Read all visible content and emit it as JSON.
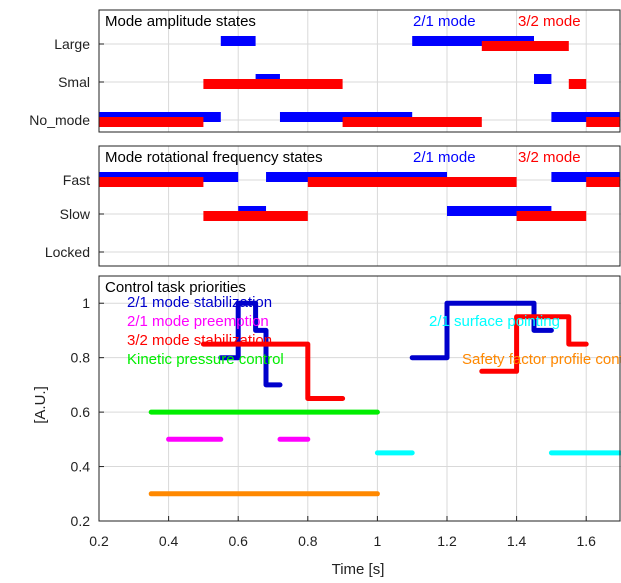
{
  "chart_data": [
    {
      "type": "bar",
      "title": "Mode amplitude states",
      "x_range": [
        0.2,
        1.7
      ],
      "x_grid": [
        0.2,
        0.4,
        0.6,
        0.8,
        1.0,
        1.2,
        1.4,
        1.6
      ],
      "categories": [
        "Large",
        "Smal",
        "No_mode"
      ],
      "grid": true,
      "series": [
        {
          "name": "2/1 mode",
          "color": "#0000ff",
          "segments": [
            {
              "state": "No_mode",
              "x": [
                0.2,
                0.55
              ]
            },
            {
              "state": "Large",
              "x": [
                0.55,
                0.65
              ]
            },
            {
              "state": "Smal",
              "x": [
                0.65,
                0.72
              ]
            },
            {
              "state": "No_mode",
              "x": [
                0.72,
                1.1
              ]
            },
            {
              "state": "Large",
              "x": [
                1.1,
                1.45
              ]
            },
            {
              "state": "Smal",
              "x": [
                1.45,
                1.5
              ]
            },
            {
              "state": "No_mode",
              "x": [
                1.5,
                1.7
              ]
            }
          ]
        },
        {
          "name": "3/2 mode",
          "color": "#ff0000",
          "segments": [
            {
              "state": "No_mode",
              "x": [
                0.2,
                0.5
              ]
            },
            {
              "state": "Smal",
              "x": [
                0.5,
                0.9
              ]
            },
            {
              "state": "No_mode",
              "x": [
                0.9,
                1.3
              ]
            },
            {
              "state": "Large",
              "x": [
                1.3,
                1.55
              ]
            },
            {
              "state": "Smal",
              "x": [
                1.55,
                1.6
              ]
            },
            {
              "state": "No_mode",
              "x": [
                1.6,
                1.7
              ]
            }
          ]
        }
      ]
    },
    {
      "type": "bar",
      "title": "Mode rotational frequency states",
      "x_range": [
        0.2,
        1.7
      ],
      "x_grid": [
        0.2,
        0.4,
        0.6,
        0.8,
        1.0,
        1.2,
        1.4,
        1.6
      ],
      "categories": [
        "Fast",
        "Slow",
        "Locked"
      ],
      "grid": true,
      "series": [
        {
          "name": "2/1 mode",
          "color": "#0000ff",
          "segments": [
            {
              "state": "Fast",
              "x": [
                0.2,
                0.6
              ]
            },
            {
              "state": "Slow",
              "x": [
                0.6,
                0.68
              ]
            },
            {
              "state": "Fast",
              "x": [
                0.68,
                1.2
              ]
            },
            {
              "state": "Slow",
              "x": [
                1.2,
                1.5
              ]
            },
            {
              "state": "Fast",
              "x": [
                1.5,
                1.7
              ]
            }
          ]
        },
        {
          "name": "3/2 mode",
          "color": "#ff0000",
          "segments": [
            {
              "state": "Fast",
              "x": [
                0.2,
                0.5
              ]
            },
            {
              "state": "Slow",
              "x": [
                0.5,
                0.8
              ]
            },
            {
              "state": "Fast",
              "x": [
                0.8,
                1.4
              ]
            },
            {
              "state": "Slow",
              "x": [
                1.4,
                1.6
              ]
            },
            {
              "state": "Fast",
              "x": [
                1.6,
                1.7
              ]
            }
          ]
        }
      ]
    },
    {
      "type": "line",
      "title": "Control task priorities",
      "xlabel": "Time [s]",
      "ylabel": "[A.U.]",
      "xlim": [
        0.2,
        1.7
      ],
      "ylim": [
        0.2,
        1.1
      ],
      "x_ticks": [
        0.2,
        0.4,
        0.6,
        0.8,
        1.0,
        1.2,
        1.4,
        1.6
      ],
      "x_tick_labels": [
        "0.2",
        "0.4",
        "0.6",
        "0.8",
        "1",
        "1.2",
        "1.4",
        "1.6"
      ],
      "y_ticks": [
        0.2,
        0.4,
        0.6,
        0.8,
        1.0
      ],
      "y_tick_labels": [
        "0.2",
        "0.4",
        "0.6",
        "0.8",
        "1"
      ],
      "grid": true,
      "series": [
        {
          "name": "2/1 mode stabilization",
          "color": "#0000cc",
          "points": [
            [
              0.55,
              0.8
            ],
            [
              0.6,
              0.8
            ],
            [
              0.6,
              1.0
            ],
            [
              0.65,
              1.0
            ],
            [
              0.65,
              0.9
            ],
            [
              0.68,
              0.9
            ],
            [
              0.68,
              0.7
            ],
            [
              0.72,
              0.7
            ],
            null,
            [
              1.1,
              0.8
            ],
            [
              1.2,
              0.8
            ],
            [
              1.2,
              1.0
            ],
            [
              1.45,
              1.0
            ],
            [
              1.45,
              0.9
            ],
            [
              1.5,
              0.9
            ]
          ]
        },
        {
          "name": "2/1 mode preemption",
          "color": "#ff00ff",
          "points": [
            [
              0.4,
              0.5
            ],
            [
              0.55,
              0.5
            ],
            null,
            [
              0.72,
              0.5
            ],
            [
              0.8,
              0.5
            ]
          ]
        },
        {
          "name": "3/2 mode stabilization",
          "color": "#ff0000",
          "points": [
            [
              0.5,
              0.85
            ],
            [
              0.8,
              0.85
            ],
            [
              0.8,
              0.65
            ],
            [
              0.9,
              0.65
            ],
            null,
            [
              1.3,
              0.75
            ],
            [
              1.4,
              0.75
            ],
            [
              1.4,
              0.95
            ],
            [
              1.55,
              0.95
            ],
            [
              1.55,
              0.85
            ],
            [
              1.6,
              0.85
            ]
          ]
        },
        {
          "name": "Kinetic pressure control",
          "color": "#00ee00",
          "points": [
            [
              0.35,
              0.6
            ],
            [
              1.0,
              0.6
            ]
          ]
        },
        {
          "name": "2/1 surface pointing",
          "color": "#00ffff",
          "points": [
            [
              1.0,
              0.45
            ],
            [
              1.1,
              0.45
            ],
            null,
            [
              1.5,
              0.45
            ],
            [
              1.7,
              0.45
            ]
          ]
        },
        {
          "name": "Safety factor profile control",
          "color": "#ff8800",
          "points": [
            [
              0.35,
              0.3
            ],
            [
              1.0,
              0.3
            ]
          ]
        }
      ]
    }
  ]
}
